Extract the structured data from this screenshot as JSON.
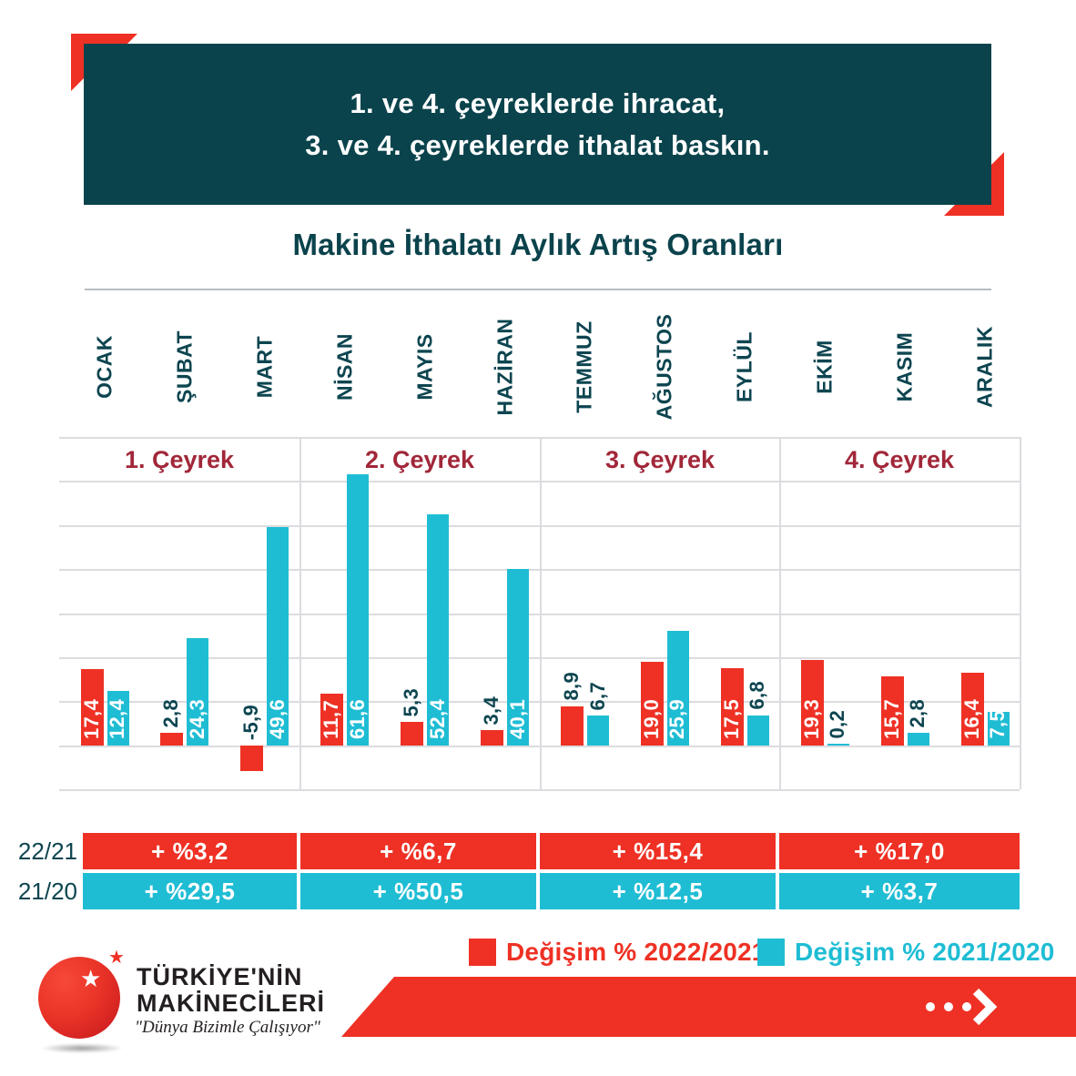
{
  "banner": {
    "line1": "1. ve 4. çeyreklerde ihracat,",
    "line2": "3. ve 4. çeyreklerde ithalat baskın."
  },
  "title": "Makine İthalatı Aylık Artış Oranları",
  "chart_data": {
    "type": "bar",
    "title": "Makine İthalatı Aylık Artış Oranları",
    "categories": [
      "OCAK",
      "ŞUBAT",
      "MART",
      "NİSAN",
      "MAYIS",
      "HAZİRAN",
      "TEMMUZ",
      "AĞUSTOS",
      "EYLÜL",
      "EKİM",
      "KASIM",
      "ARALIK"
    ],
    "quarters": [
      "1. Çeyrek",
      "2. Çeyrek",
      "3. Çeyrek",
      "4. Çeyrek"
    ],
    "series": [
      {
        "name": "Değişim % 2022/2021",
        "color": "#ee3124",
        "values": [
          17.4,
          2.8,
          -5.9,
          11.7,
          5.3,
          3.4,
          8.9,
          19.0,
          17.5,
          19.3,
          15.7,
          16.4
        ],
        "labels": [
          "17,4",
          "2,8",
          "-5,9",
          "11,7",
          "5,3",
          "3,4",
          "8,9",
          "19,0",
          "17,5",
          "19,3",
          "15,7",
          "16,4"
        ],
        "label_inside": [
          true,
          false,
          false,
          true,
          false,
          false,
          false,
          true,
          true,
          true,
          true,
          true
        ]
      },
      {
        "name": "Değişim % 2021/2020",
        "color": "#1fbdd4",
        "values": [
          12.4,
          24.3,
          49.6,
          61.6,
          52.4,
          40.1,
          6.7,
          25.9,
          6.8,
          0.2,
          2.8,
          7.5
        ],
        "labels": [
          "12,4",
          "24,3",
          "49,6",
          "61,6",
          "52,4",
          "40,1",
          "6,7",
          "25,9",
          "6,8",
          "0,2",
          "2,8",
          "7,5"
        ],
        "label_inside": [
          true,
          true,
          true,
          true,
          true,
          true,
          false,
          true,
          false,
          false,
          false,
          true
        ]
      }
    ],
    "ylim": [
      -10,
      70
    ],
    "grid_step": 10,
    "grid": true,
    "legend_position": "bottom"
  },
  "summary": {
    "rows": [
      {
        "label": "22/21",
        "color": "#ee3124",
        "cells": [
          "+ %3,2",
          "+ %6,7",
          "+ %15,4",
          "+ %17,0"
        ]
      },
      {
        "label": "21/20",
        "color": "#1fbdd4",
        "cells": [
          "+ %29,5",
          "+ %50,5",
          "+ %12,5",
          "+ %3,7"
        ]
      }
    ]
  },
  "legend": {
    "items": [
      {
        "label": "Değişim % 2022/2021",
        "color": "#ee3124"
      },
      {
        "label": "Değişim % 2021/2020",
        "color": "#1fbdd4"
      }
    ]
  },
  "logo": {
    "line1": "TÜRKİYE'NİN",
    "line2": "MAKİNECİLERİ",
    "tagline": "\"Dünya Bizimle Çalışıyor\"",
    "star": "★"
  },
  "colors": {
    "red": "#ee3124",
    "cyan": "#1fbdd4",
    "teal": "#0a434c",
    "maroon": "#a12739",
    "ink": "#0d4550",
    "grid": "#dcdce0"
  }
}
